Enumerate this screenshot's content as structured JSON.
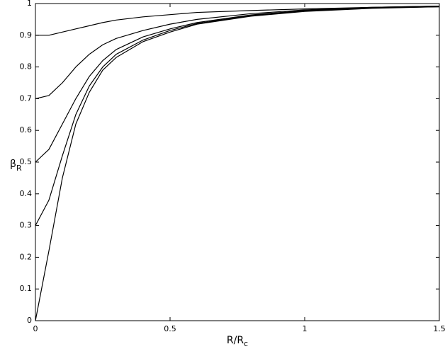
{
  "chart_data": {
    "type": "line",
    "x_label": "R/R",
    "x_label_sub": "c",
    "y_label": "β",
    "y_label_sub": "R",
    "x": [
      0,
      0.05,
      0.1,
      0.15,
      0.2,
      0.25,
      0.3,
      0.4,
      0.5,
      0.6,
      0.8,
      1.0,
      1.25,
      1.5
    ],
    "series": [
      {
        "color": "#000000",
        "values": [
          0,
          0.22,
          0.45,
          0.62,
          0.72,
          0.79,
          0.83,
          0.88,
          0.91,
          0.935,
          0.96,
          0.975,
          0.985,
          0.99
        ]
      },
      {
        "color": "#000000",
        "values": [
          0.3,
          0.38,
          0.52,
          0.65,
          0.74,
          0.8,
          0.84,
          0.885,
          0.915,
          0.937,
          0.962,
          0.977,
          0.986,
          0.99
        ]
      },
      {
        "color": "#000000",
        "values": [
          0.5,
          0.54,
          0.62,
          0.7,
          0.77,
          0.82,
          0.855,
          0.895,
          0.92,
          0.94,
          0.964,
          0.978,
          0.987,
          0.99
        ]
      },
      {
        "color": "#000000",
        "values": [
          0.7,
          0.71,
          0.75,
          0.8,
          0.84,
          0.87,
          0.89,
          0.915,
          0.935,
          0.95,
          0.968,
          0.98,
          0.988,
          0.992
        ]
      },
      {
        "color": "#000000",
        "values": [
          0.9,
          0.9,
          0.91,
          0.92,
          0.93,
          0.94,
          0.948,
          0.958,
          0.965,
          0.972,
          0.978,
          0.983,
          0.988,
          0.992
        ]
      }
    ],
    "xlim": [
      0,
      1.5
    ],
    "xticks": [
      0,
      0.5,
      1,
      1.5
    ],
    "ylim": [
      0,
      1
    ],
    "yticks": [
      0,
      0.1,
      0.2,
      0.3,
      0.4,
      0.5,
      0.6,
      0.7,
      0.8,
      0.9,
      1
    ],
    "grid": false
  }
}
